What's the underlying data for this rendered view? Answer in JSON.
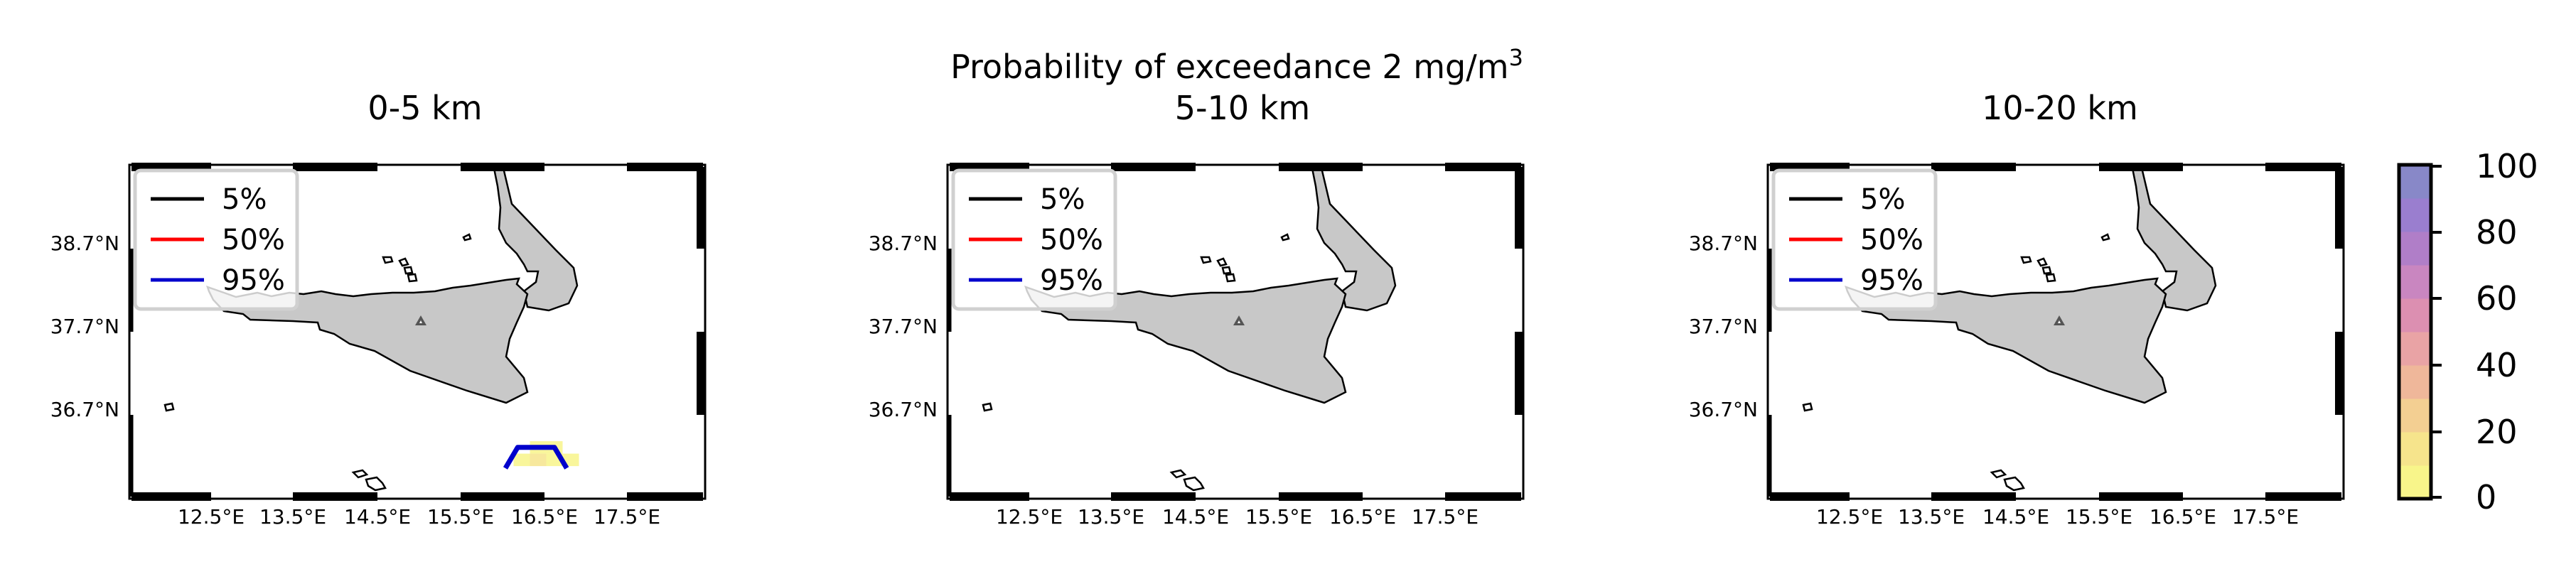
{
  "figure": {
    "title_prefix": "Probability of exceedance 2 mg/m",
    "title_superscript": "3"
  },
  "colors": {
    "land": "#c8c8c8",
    "coast": "#000000",
    "volcano": "#555555",
    "contour_5": "#000000",
    "contour_50": "#ff0000",
    "contour_95": "#0000cc"
  },
  "chart_data": [
    {
      "type": "heatmap",
      "title": "0-5 km",
      "x_tick_labels": [
        "12.5°E",
        "13.5°E",
        "14.5°E",
        "15.5°E",
        "16.5°E",
        "17.5°E"
      ],
      "y_tick_labels": [
        "38.7°N",
        "37.7°N",
        "36.7°N"
      ],
      "legend": [
        "5%",
        "50%",
        "95%"
      ],
      "legend_position": "top-left",
      "probability_cells": [
        {
          "lon": 16.5,
          "lat": 35.85,
          "value": 8
        },
        {
          "lon": 16.7,
          "lat": 35.85,
          "value": 8
        },
        {
          "lon": 16.3,
          "lat": 35.7,
          "value": 8
        },
        {
          "lon": 16.5,
          "lat": 35.7,
          "value": 12
        },
        {
          "lon": 16.7,
          "lat": 35.7,
          "value": 8
        },
        {
          "lon": 16.9,
          "lat": 35.7,
          "value": 8
        }
      ],
      "contours": [
        {
          "level": "95%",
          "path": [
            [
              16.1,
              35.6
            ],
            [
              16.25,
              35.85
            ],
            [
              16.7,
              35.85
            ],
            [
              16.85,
              35.6
            ]
          ]
        }
      ]
    },
    {
      "type": "heatmap",
      "title": "5-10 km",
      "x_tick_labels": [
        "12.5°E",
        "13.5°E",
        "14.5°E",
        "15.5°E",
        "16.5°E",
        "17.5°E"
      ],
      "y_tick_labels": [
        "38.7°N",
        "37.7°N",
        "36.7°N"
      ],
      "legend": [
        "5%",
        "50%",
        "95%"
      ],
      "legend_position": "top-left",
      "probability_cells": [],
      "contours": []
    },
    {
      "type": "heatmap",
      "title": "10-20 km",
      "x_tick_labels": [
        "12.5°E",
        "13.5°E",
        "14.5°E",
        "15.5°E",
        "16.5°E",
        "17.5°E"
      ],
      "y_tick_labels": [
        "38.7°N",
        "37.7°N",
        "36.7°N"
      ],
      "legend": [
        "5%",
        "50%",
        "95%"
      ],
      "legend_position": "top-left",
      "probability_cells": [],
      "contours": []
    }
  ],
  "colorbar": {
    "tick_labels": [
      "100",
      "80",
      "60",
      "40",
      "20",
      "0"
    ],
    "range": [
      0,
      100
    ],
    "colors": [
      "#f8f58a",
      "#f6e48c",
      "#f3cf92",
      "#efb79a",
      "#e9a3a5",
      "#dc8fb1",
      "#c986c0",
      "#b07ec8",
      "#9a7ecf",
      "#8888c8"
    ]
  }
}
